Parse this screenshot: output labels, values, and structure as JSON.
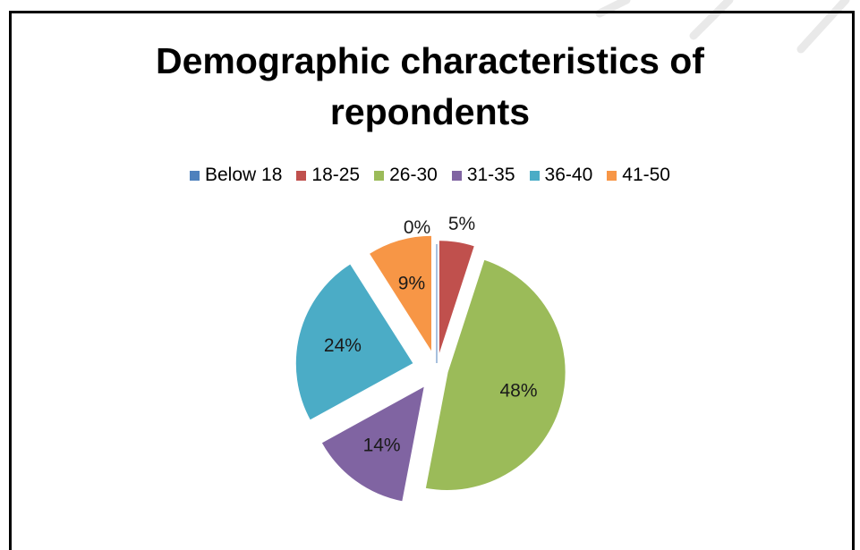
{
  "chart_data": {
    "type": "pie",
    "title": "Demographic characteristics of repondents",
    "title_lines": [
      "Demographic characteristics of",
      "repondents"
    ],
    "legend_position": "top",
    "exploded": true,
    "categories": [
      "Below 18",
      "18-25",
      "26-30",
      "31-35",
      "36-40",
      "41-50"
    ],
    "values": [
      0,
      5,
      48,
      14,
      24,
      9
    ],
    "labels": [
      "0%",
      "5%",
      "48%",
      "14%",
      "24%",
      "9%"
    ],
    "colors": [
      "#4F81BD",
      "#C0504D",
      "#9BBB59",
      "#8064A2",
      "#4BACC6",
      "#F79646"
    ]
  }
}
